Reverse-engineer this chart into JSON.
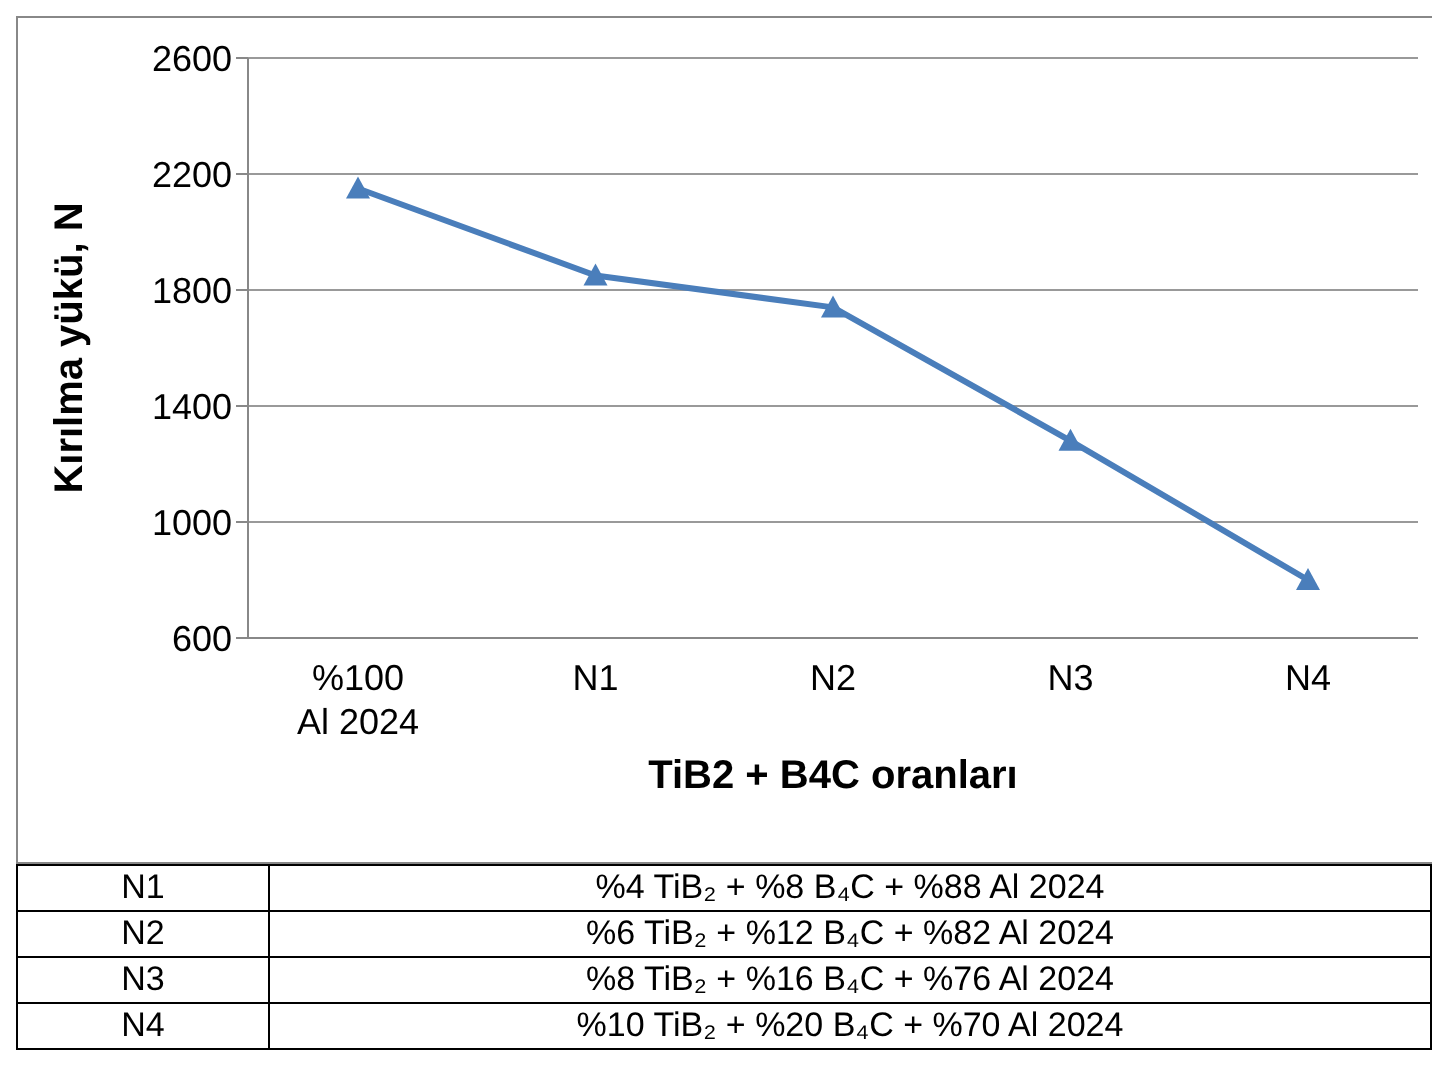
{
  "chart_data": {
    "type": "line",
    "xlabel": "TiB2 + B4C oranları",
    "ylabel": "Kırılma yükü,  N",
    "categories": [
      "%100 Al 2024",
      "N1",
      "N2",
      "N3",
      "N4"
    ],
    "series": [
      {
        "color": "#4a7ebb",
        "values": [
          2150,
          1850,
          1740,
          1280,
          800
        ]
      }
    ],
    "ylim": [
      600,
      2600
    ],
    "yticks": [
      600,
      1000,
      1400,
      1800,
      2200,
      2600
    ],
    "grid": "y",
    "marker": "triangle",
    "line_style": "solid",
    "legend": false,
    "annotations": [
      "N1",
      "%4 TiB₂ + %8 B₄C + %88 Al 2024",
      "N2",
      "%6 TiB₂ + %12 B₄C + %82 Al 2024",
      "N3",
      "%8 TiB₂ + %16 B₄C + %76 Al 2024",
      "N4",
      "%10 TiB₂ + %20 B₄C + %70 Al 2024"
    ]
  }
}
